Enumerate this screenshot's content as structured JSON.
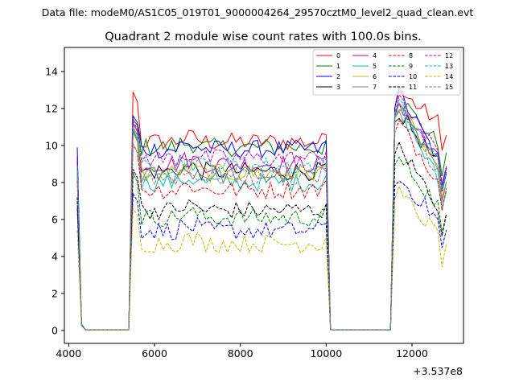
{
  "suptitle": "Data file: modeM0/AS1C05_019T01_9000004264_29570cztM0_level2_quad_clean.evt",
  "chart_data": {
    "type": "line",
    "title": "Quadrant 2 module wise count rates with 100.0s bins.",
    "xlabel": "",
    "ylabel": "",
    "x_offset_label": "+3.537e8",
    "xlim": [
      3900,
      13200
    ],
    "ylim": [
      -0.7,
      15.3
    ],
    "xticks": [
      4000,
      6000,
      8000,
      10000,
      12000
    ],
    "yticks": [
      0,
      2,
      4,
      6,
      8,
      10,
      12,
      14
    ],
    "grid": false,
    "legend_position": "top-right",
    "legend_columns": 4,
    "x_note": "x values are seconds offset from 3.537e8; bins of 100 s",
    "segments": [
      {
        "x_start": 4200,
        "x_end": 4400,
        "shape": "decay"
      },
      {
        "x_start": 4400,
        "x_end": 5400,
        "shape": "zero"
      },
      {
        "x_start": 5500,
        "x_end": 10000,
        "shape": "plateau"
      },
      {
        "x_start": 10100,
        "x_end": 10200,
        "shape": "decay"
      },
      {
        "x_start": 10200,
        "x_end": 11500,
        "shape": "zero"
      },
      {
        "x_start": 11600,
        "x_end": 12800,
        "shape": "peak"
      }
    ],
    "series": [
      {
        "name": "0",
        "color": "#ff0000",
        "dash": "solid",
        "level": 10.2,
        "start": 9.4,
        "peak": 12.9,
        "late": 10.7,
        "jump": 12.9
      },
      {
        "name": "1",
        "color": "#008000",
        "dash": "solid",
        "level": 9.9,
        "start": 9.2,
        "peak": 12.6,
        "late": 9.5,
        "jump": 11.4
      },
      {
        "name": "2",
        "color": "#0000ff",
        "dash": "solid",
        "level": 9.8,
        "start": 9.9,
        "peak": 12.8,
        "late": 8.7,
        "jump": 11.6
      },
      {
        "name": "3",
        "color": "#000000",
        "dash": "solid",
        "level": 8.6,
        "start": 8.6,
        "peak": 11.8,
        "late": 8.4,
        "jump": 10.8
      },
      {
        "name": "4",
        "color": "#bf00bf",
        "dash": "solid",
        "level": 9.0,
        "start": 9.0,
        "peak": 12.3,
        "late": 8.6,
        "jump": 11.2
      },
      {
        "name": "5",
        "color": "#00bfbf",
        "dash": "solid",
        "level": 8.0,
        "start": 8.5,
        "peak": 12.0,
        "late": 7.6,
        "jump": 10.9
      },
      {
        "name": "6",
        "color": "#bfbf00",
        "dash": "solid",
        "level": 8.5,
        "start": 8.8,
        "peak": 12.2,
        "late": 8.1,
        "jump": 11.0
      },
      {
        "name": "7",
        "color": "#808080",
        "dash": "solid",
        "level": 8.4,
        "start": 8.7,
        "peak": 12.1,
        "late": 7.9,
        "jump": 10.7
      },
      {
        "name": "8",
        "color": "#ff0000",
        "dash": "dashed",
        "level": 7.6,
        "start": 8.1,
        "peak": 11.2,
        "late": 7.6,
        "jump": 10.1
      },
      {
        "name": "9",
        "color": "#008000",
        "dash": "dashed",
        "level": 6.1,
        "start": 7.0,
        "peak": 9.3,
        "late": 6.2,
        "jump": 8.5
      },
      {
        "name": "10",
        "color": "#0000ff",
        "dash": "dashed",
        "level": 5.4,
        "start": 6.6,
        "peak": 8.2,
        "late": 5.4,
        "jump": 7.4
      },
      {
        "name": "11",
        "color": "#000000",
        "dash": "dashed",
        "level": 6.5,
        "start": 7.2,
        "peak": 10.0,
        "late": 6.2,
        "jump": 8.7
      },
      {
        "name": "12",
        "color": "#bf00bf",
        "dash": "dashed",
        "level": 9.3,
        "start": 9.2,
        "peak": 12.4,
        "late": 9.0,
        "jump": 11.3
      },
      {
        "name": "13",
        "color": "#00bfbf",
        "dash": "dashed",
        "level": 8.9,
        "start": 8.9,
        "peak": 12.2,
        "late": 8.6,
        "jump": 11.0
      },
      {
        "name": "14",
        "color": "#bfbf00",
        "dash": "dashed",
        "level": 4.7,
        "start": 5.4,
        "peak": 7.4,
        "late": 4.6,
        "jump": 6.6
      },
      {
        "name": "15",
        "color": "#808080",
        "dash": "dashed",
        "level": 8.3,
        "start": 8.6,
        "peak": 12.0,
        "late": 8.0,
        "jump": 10.8
      }
    ]
  }
}
